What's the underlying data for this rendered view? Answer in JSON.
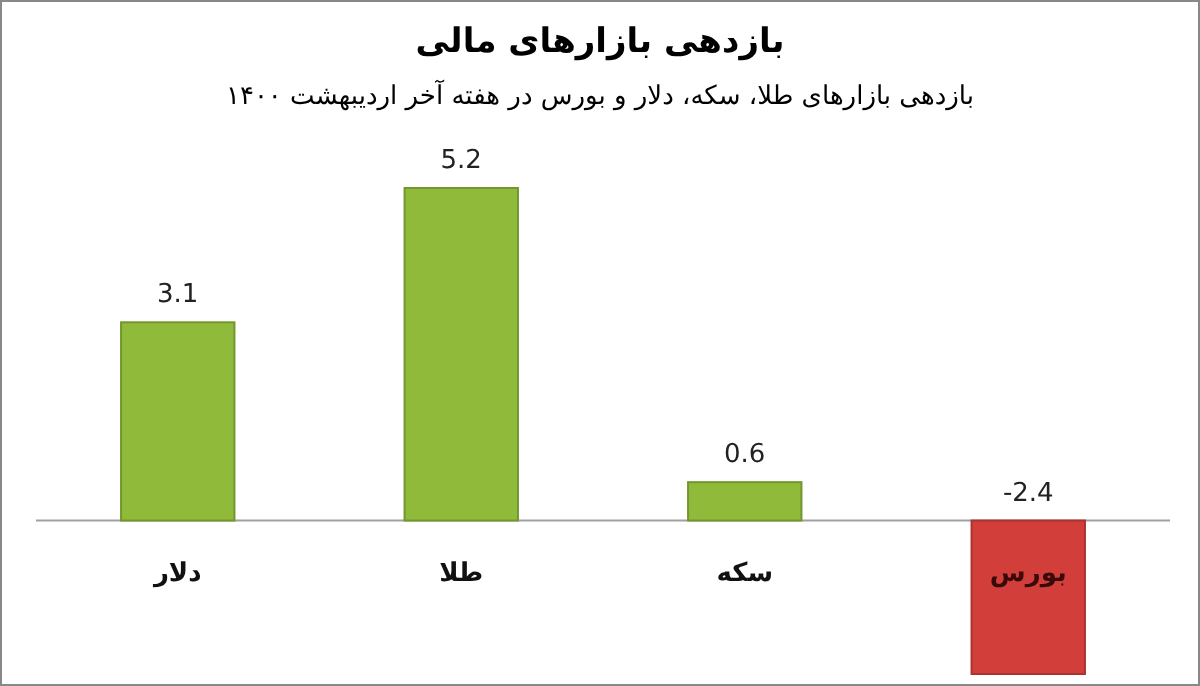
{
  "chart_data": {
    "type": "bar",
    "title": "بازدهی بازارهای مالی",
    "subtitle": "بازدهی بازارهای طلا، سکه، دلار و بورس در هفته آخر اردیبهشت ۱۴۰۰",
    "categories": [
      "دلار",
      "طلا",
      "سکه",
      "بورس"
    ],
    "values": [
      3.1,
      5.2,
      0.6,
      -2.4
    ],
    "colors": [
      "#8fba3a",
      "#8fba3a",
      "#8fba3a",
      "#d23f3b"
    ],
    "data_labels": true
  }
}
